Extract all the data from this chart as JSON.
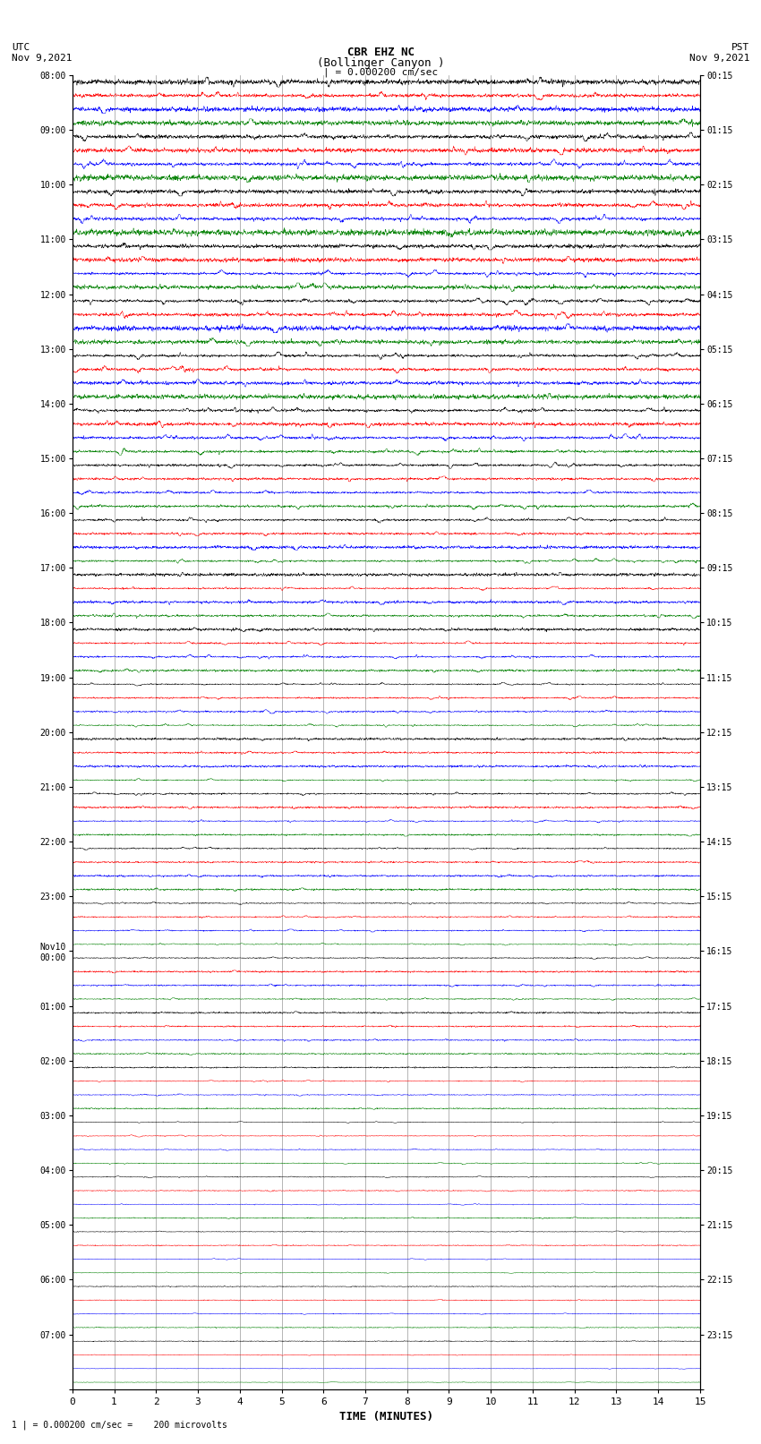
{
  "title_line1": "CBR EHZ NC",
  "title_line2": "(Bollinger Canyon )",
  "scale_label": "| = 0.000200 cm/sec",
  "xlabel": "TIME (MINUTES)",
  "footer": "1 | = 0.000200 cm/sec =    200 microvolts",
  "left_times": [
    "08:00",
    "09:00",
    "10:00",
    "11:00",
    "12:00",
    "13:00",
    "14:00",
    "15:00",
    "16:00",
    "17:00",
    "18:00",
    "19:00",
    "20:00",
    "21:00",
    "22:00",
    "23:00",
    "Nov10\n00:00",
    "01:00",
    "02:00",
    "03:00",
    "04:00",
    "05:00",
    "06:00",
    "07:00"
  ],
  "right_times": [
    "00:15",
    "01:15",
    "02:15",
    "03:15",
    "04:15",
    "05:15",
    "06:15",
    "07:15",
    "08:15",
    "09:15",
    "10:15",
    "11:15",
    "12:15",
    "13:15",
    "14:15",
    "15:15",
    "16:15",
    "17:15",
    "18:15",
    "19:15",
    "20:15",
    "21:15",
    "22:15",
    "23:15"
  ],
  "n_rows": 96,
  "n_cols": 4,
  "trace_colors": [
    "#000000",
    "#ff0000",
    "#0000ff",
    "#008000"
  ],
  "bg_color": "white",
  "xmin": 0,
  "xmax": 15,
  "grid_color": "#999999",
  "amplitude_by_hour": [
    0.45,
    0.44,
    0.43,
    0.42,
    0.4,
    0.38,
    0.35,
    0.3,
    0.27,
    0.24,
    0.22,
    0.2,
    0.18,
    0.16,
    0.15,
    0.14,
    0.13,
    0.12,
    0.11,
    0.1,
    0.09,
    0.08,
    0.07,
    0.06
  ]
}
